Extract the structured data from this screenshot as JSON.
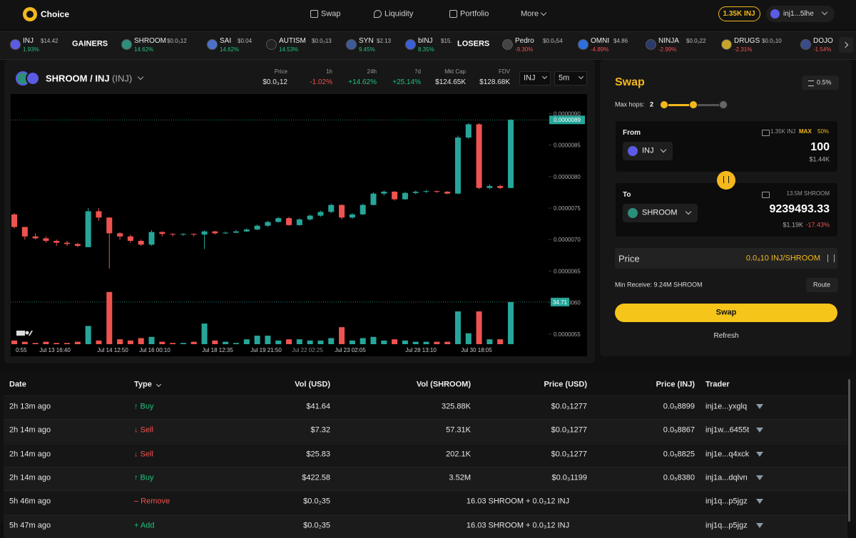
{
  "nav": {
    "brand": "Choice",
    "links": [
      "Swap",
      "Liquidity",
      "Portfolio",
      "More"
    ],
    "balance": "1.35K INJ",
    "wallet": "inj1...5lhe"
  },
  "ticker": {
    "first": {
      "symbol": "INJ",
      "price": "$14.42",
      "change": "1.93%",
      "color": "#1fc27e"
    },
    "gainers_label": "GAINERS",
    "gainers": [
      {
        "symbol": "SHROOM",
        "price": "$0.0₃12",
        "change": "14.62%"
      },
      {
        "symbol": "SAI",
        "price": "$0.04",
        "change": "14.62%"
      },
      {
        "symbol": "AUTISM",
        "price": "$0.0₃13",
        "change": "14.53%"
      },
      {
        "symbol": "SYN",
        "price": "$2.13",
        "change": "9.45%"
      },
      {
        "symbol": "bINJ",
        "price": "$15.",
        "change": "8.35%"
      }
    ],
    "gainers_color": "#1fc27e",
    "losers_label": "LOSERS",
    "losers": [
      {
        "symbol": "Pedro",
        "price": "$0.0₅54",
        "change": "-9.30%"
      },
      {
        "symbol": "OMNI",
        "price": "$4.86",
        "change": "-4.89%"
      },
      {
        "symbol": "NINJA",
        "price": "$0.0₂22",
        "change": "-2.99%"
      },
      {
        "symbol": "DRUGS",
        "price": "$0.0₃10",
        "change": "-2.31%"
      },
      {
        "symbol": "DOJO",
        "change": "-1.54%"
      }
    ],
    "losers_color": "#f0504f"
  },
  "pair": {
    "title": "SHROOM / INJ",
    "quote": "(INJ)",
    "stats": [
      {
        "label": "Price",
        "value": "$0.0₃12",
        "color": "#e6e6e6"
      },
      {
        "label": "1h",
        "value": "-1.02%",
        "color": "#f0504f"
      },
      {
        "label": "24h",
        "value": "+14.62%",
        "color": "#1fc27e"
      },
      {
        "label": "7d",
        "value": "+25.14%",
        "color": "#1fc27e"
      },
      {
        "label": "Mkt Cap",
        "value": "$124.65K",
        "color": "#e6e6e6"
      },
      {
        "label": "FDV",
        "value": "$128.68K",
        "color": "#e6e6e6"
      }
    ],
    "selects": [
      "INJ",
      "5m"
    ]
  },
  "price_chart": {
    "type": "candlestick",
    "up_color": "#26a69a",
    "down_color": "#ef5350",
    "ylim": [
      5.34e-06,
      9.31e-06
    ],
    "yticks": [
      {
        "value": 9e-06,
        "label": "0.0000090"
      },
      {
        "value": 8.5e-06,
        "label": "0.0000085"
      },
      {
        "value": 8e-06,
        "label": "0.0000080"
      },
      {
        "value": 7.5e-06,
        "label": "0.0000075"
      },
      {
        "value": 7e-06,
        "label": "0.0000070"
      },
      {
        "value": 6.5e-06,
        "label": "0.0000065"
      },
      {
        "value": 6e-06,
        "label": "0.0000060"
      },
      {
        "value": 5.5e-06,
        "label": "0.0000055"
      }
    ],
    "volume_ylim": [
      0,
      206
    ],
    "xlabels": [
      "0:55",
      "Jul 13 16:40",
      "Jul 14 12:50",
      "Jul 16 00:10",
      "Jul 18 12:35",
      "Jul 19 21:50",
      "Jul 22 02:25",
      "Jul 23 02:05",
      "Jul 28 13:10",
      "Jul 30 18:05"
    ],
    "open": [
      7.4e-06,
      7.2e-06,
      7.05e-06,
      7.02e-06,
      6.98e-06,
      6.95e-06,
      6.93e-06,
      6.88e-06,
      7.45e-06,
      7.35e-06,
      7.1e-06,
      7.05e-06,
      6.98e-06,
      6.92e-06,
      7.12e-06,
      7.09e-06,
      7.08e-06,
      7.09e-06,
      7.08e-06,
      7.13e-06,
      7.1e-06,
      7.11e-06,
      7.13e-06,
      7.16e-06,
      7.22e-06,
      7.28e-06,
      7.34e-06,
      7.23e-06,
      7.32e-06,
      7.38e-06,
      7.44e-06,
      7.55e-06,
      7.35e-06,
      7.4e-06,
      7.55e-06,
      7.73e-06,
      7.76e-06,
      7.64e-06,
      7.74e-06,
      7.76e-06,
      7.77e-06,
      7.76e-06,
      7.73e-06,
      8.62e-06,
      8.83e-06,
      7.82e-06,
      7.85e-06,
      7.82e-06
    ],
    "high": [
      7.42e-06,
      7.2e-06,
      7.1e-06,
      7.05e-06,
      7e-06,
      6.98e-06,
      6.95e-06,
      7.5e-06,
      7.5e-06,
      7.35e-06,
      7.12e-06,
      7.08e-06,
      7e-06,
      7.15e-06,
      7.13e-06,
      7.1e-06,
      7.1e-06,
      7.1e-06,
      7.15e-06,
      7.14e-06,
      7.13e-06,
      7.15e-06,
      7.18e-06,
      7.24e-06,
      7.3e-06,
      7.36e-06,
      7.36e-06,
      7.34e-06,
      7.4e-06,
      7.46e-06,
      7.57e-06,
      7.56e-06,
      7.42e-06,
      7.57e-06,
      7.75e-06,
      7.78e-06,
      7.77e-06,
      7.76e-06,
      7.78e-06,
      7.79e-06,
      7.78e-06,
      7.77e-06,
      8.65e-06,
      8.85e-06,
      8.85e-06,
      7.88e-06,
      7.87e-06,
      8.91e-06
    ],
    "low": [
      7.18e-06,
      7e-06,
      7e-06,
      6.95e-06,
      6.9e-06,
      6.9e-06,
      6.88e-06,
      6.88e-06,
      7.3e-06,
      6.54e-06,
      7e-06,
      6.95e-06,
      6.9e-06,
      6.9e-06,
      7.05e-06,
      7.05e-06,
      7.06e-06,
      7.05e-06,
      6.85e-06,
      7.08e-06,
      7.09e-06,
      7.1e-06,
      7.12e-06,
      7.15e-06,
      7.2e-06,
      7.27e-06,
      7.22e-06,
      7.22e-06,
      7.3e-06,
      7.36e-06,
      7.42e-06,
      7.32e-06,
      7.33e-06,
      7.39e-06,
      7.54e-06,
      7.7e-06,
      7.62e-06,
      7.63e-06,
      7.72e-06,
      7.74e-06,
      7.74e-06,
      7.72e-06,
      7.72e-06,
      8.6e-06,
      7.8e-06,
      7.8e-06,
      7.8e-06,
      7.81e-06
    ],
    "close": [
      7.2e-06,
      7.05e-06,
      7.02e-06,
      6.98e-06,
      6.95e-06,
      6.93e-06,
      6.9e-06,
      7.45e-06,
      7.35e-06,
      7.1e-06,
      7.05e-06,
      6.98e-06,
      6.92e-06,
      7.12e-06,
      7.09e-06,
      7.08e-06,
      7.09e-06,
      7.08e-06,
      7.13e-06,
      7.1e-06,
      7.11e-06,
      7.13e-06,
      7.16e-06,
      7.22e-06,
      7.28e-06,
      7.34e-06,
      7.23e-06,
      7.32e-06,
      7.38e-06,
      7.44e-06,
      7.55e-06,
      7.35e-06,
      7.4e-06,
      7.55e-06,
      7.73e-06,
      7.76e-06,
      7.64e-06,
      7.74e-06,
      7.76e-06,
      7.77e-06,
      7.76e-06,
      7.73e-06,
      8.62e-06,
      8.83e-06,
      7.82e-06,
      7.85e-06,
      7.82e-06,
      8.9e-06
    ],
    "volume": [
      3,
      2,
      1,
      2,
      1,
      1,
      2,
      15,
      3,
      43,
      4,
      3,
      5,
      6,
      2,
      1,
      1,
      2,
      17,
      3,
      2,
      1,
      4,
      7,
      7,
      3,
      4,
      4,
      3,
      3,
      5,
      14,
      3,
      5,
      6,
      3,
      4,
      3,
      2,
      2,
      2,
      2,
      27,
      9,
      27,
      4,
      4,
      34.71
    ],
    "last_price_label": "0.0000089",
    "last_volume_label": "34.71"
  },
  "swap": {
    "title": "Swap",
    "slippage": "0.5%",
    "max_hops_label": "Max hops:",
    "max_hops": 2,
    "from": {
      "label": "From",
      "balance": "1.35K INJ",
      "max": "MAX",
      "half": "50%",
      "token": "INJ",
      "amount": "100",
      "usd": "$1.44K"
    },
    "to": {
      "label": "To",
      "balance": "13.5M SHROOM",
      "token": "SHROOM",
      "amount": "9239493.33",
      "usd": "$1.19K",
      "impact": "-17.43%"
    },
    "price": {
      "label": "Price",
      "value": "0.0₄10 INJ/SHROOM"
    },
    "min_receive": "Min Receive: 9.24M SHROOM",
    "route": "Route",
    "button": "Swap",
    "refresh": "Refresh"
  },
  "trades": {
    "columns": [
      "Date",
      "Type",
      "Vol (USD)",
      "Vol (SHROOM)",
      "Price (USD)",
      "Price (INJ)",
      "Trader"
    ],
    "rows": [
      {
        "cells": [
          "2h 13m ago",
          "↑ Buy",
          "$41.64",
          "325.88K",
          "$0.0₃1277",
          "0.0₅8899",
          "inj1e...yxglq"
        ],
        "type_color": "#1fc27e"
      },
      {
        "cells": [
          "2h 14m ago",
          "↓ Sell",
          "$7.32",
          "57.31K",
          "$0.0₃1277",
          "0.0₅8867",
          "inj1w...6455t"
        ],
        "type_color": "#f0504f"
      },
      {
        "cells": [
          "2h 14m ago",
          "↓ Sell",
          "$25.83",
          "202.1K",
          "$0.0₃1277",
          "0.0₅8825",
          "inj1e...q4xck"
        ],
        "type_color": "#f0504f"
      },
      {
        "cells": [
          "2h 14m ago",
          "↑ Buy",
          "$422.58",
          "3.52M",
          "$0.0₃1199",
          "0.0₅8380",
          "inj1a...dqlvn"
        ],
        "type_color": "#1fc27e"
      },
      {
        "cells": [
          "5h 46m ago",
          "– Remove",
          "$0.0₂35",
          "16.03 SHROOM + 0.0₃12 INJ",
          "inj1q...p5jgz"
        ],
        "type_color": "#f0504f"
      },
      {
        "cells": [
          "5h 47m ago",
          "+ Add",
          "$0.0₂35",
          "16.03 SHROOM + 0.0₃12 INJ",
          "inj1q...p5jgz"
        ],
        "type_color": "#1fc27e"
      }
    ]
  }
}
